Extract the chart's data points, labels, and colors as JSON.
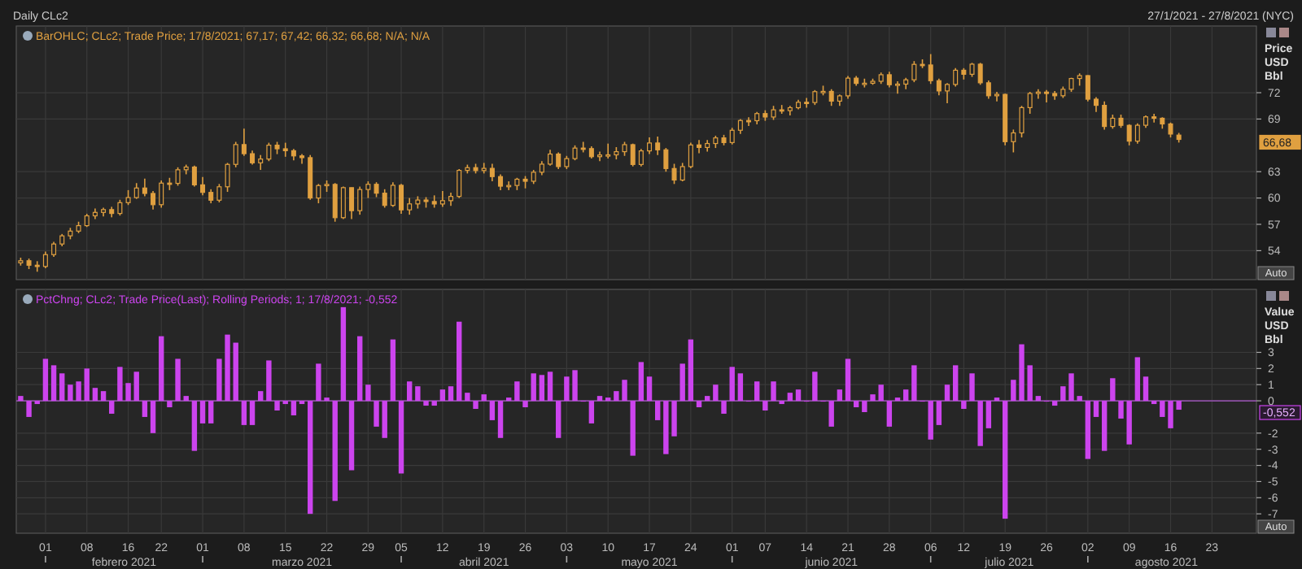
{
  "chart_data": [
    {
      "type": "candlestick",
      "title": "BarOHLC; CLc2; Trade Price; 17/8/2021; 67,17; 67,42; 66,32; 66,68; N/A; N/A",
      "ylabel": "Price USD Bbl",
      "color": "#e0a040",
      "grid": true,
      "tick_labels": "y",
      "ylim": [
        50.7,
        79.6
      ],
      "yticks": [
        54,
        57,
        60,
        63,
        69,
        72
      ],
      "annotations": [
        {
          "text": "66,68",
          "y": 66.68
        },
        "Auto",
        "Daily CLc2",
        "27/1/2021 - 27/8/2021 (NYC)"
      ],
      "categories": [
        null,
        null,
        null,
        "01",
        null,
        null,
        null,
        null,
        "08",
        null,
        null,
        null,
        null,
        "16",
        null,
        null,
        null,
        "22",
        null,
        null,
        null,
        null,
        "01",
        null,
        null,
        null,
        null,
        "08",
        null,
        null,
        null,
        null,
        "15",
        null,
        null,
        null,
        null,
        "22",
        null,
        null,
        null,
        null,
        "29",
        null,
        null,
        null,
        "05",
        null,
        null,
        null,
        null,
        "12",
        null,
        null,
        null,
        null,
        "19",
        null,
        null,
        null,
        null,
        "26",
        null,
        null,
        null,
        null,
        "03",
        null,
        null,
        null,
        null,
        "10",
        null,
        null,
        null,
        null,
        "17",
        null,
        null,
        null,
        null,
        "24",
        null,
        null,
        null,
        null,
        "01",
        null,
        null,
        null,
        "07",
        null,
        null,
        null,
        null,
        "14",
        null,
        null,
        null,
        null,
        "21",
        null,
        null,
        null,
        null,
        "28",
        null,
        null,
        null,
        null,
        "06",
        null,
        null,
        null,
        "12",
        null,
        null,
        null,
        null,
        "19",
        null,
        null,
        null,
        null,
        "26",
        null,
        null,
        null,
        null,
        "02",
        null,
        null,
        null,
        null,
        "09",
        null,
        null,
        null,
        null,
        "16",
        null,
        null,
        null,
        null,
        "23",
        null,
        null,
        null,
        null
      ],
      "ohlc": [
        [
          52.61,
          53.2,
          52.3,
          52.85
        ],
        [
          52.85,
          53.1,
          51.9,
          52.34
        ],
        [
          52.34,
          52.8,
          51.6,
          52.2
        ],
        [
          52.2,
          53.9,
          52.0,
          53.55
        ],
        [
          53.55,
          55.0,
          53.3,
          54.76
        ],
        [
          54.76,
          55.9,
          54.5,
          55.69
        ],
        [
          55.69,
          56.6,
          55.3,
          56.23
        ],
        [
          56.23,
          57.3,
          56.0,
          56.85
        ],
        [
          56.85,
          58.2,
          56.7,
          57.97
        ],
        [
          57.97,
          58.8,
          57.6,
          58.36
        ],
        [
          58.36,
          58.9,
          57.9,
          58.68
        ],
        [
          58.68,
          59.0,
          57.8,
          58.24
        ],
        [
          58.24,
          59.8,
          58.0,
          59.47
        ],
        [
          59.47,
          60.9,
          59.2,
          60.05
        ],
        [
          60.05,
          61.7,
          59.9,
          61.14
        ],
        [
          61.14,
          62.2,
          60.2,
          60.52
        ],
        [
          60.52,
          60.8,
          58.7,
          59.24
        ],
        [
          59.24,
          62.0,
          58.9,
          61.7
        ],
        [
          61.7,
          62.3,
          60.9,
          61.67
        ],
        [
          61.67,
          63.5,
          61.4,
          63.22
        ],
        [
          63.22,
          63.8,
          62.7,
          63.53
        ],
        [
          63.53,
          63.7,
          61.3,
          61.5
        ],
        [
          61.5,
          62.4,
          60.3,
          60.64
        ],
        [
          60.64,
          61.0,
          59.4,
          59.75
        ],
        [
          59.75,
          61.6,
          59.5,
          61.28
        ],
        [
          61.28,
          64.0,
          60.7,
          63.83
        ],
        [
          63.83,
          66.4,
          63.5,
          66.09
        ],
        [
          66.09,
          67.9,
          64.8,
          65.05
        ],
        [
          65.05,
          65.4,
          63.8,
          64.01
        ],
        [
          64.01,
          64.9,
          63.2,
          64.44
        ],
        [
          64.44,
          66.3,
          64.2,
          66.02
        ],
        [
          66.02,
          66.4,
          65.0,
          65.61
        ],
        [
          65.61,
          66.3,
          64.7,
          65.39
        ],
        [
          65.39,
          65.6,
          64.3,
          64.8
        ],
        [
          64.8,
          65.0,
          63.9,
          64.6
        ],
        [
          64.6,
          64.9,
          59.8,
          60.0
        ],
        [
          60.0,
          61.6,
          59.4,
          61.42
        ],
        [
          61.42,
          62.0,
          60.7,
          61.55
        ],
        [
          61.55,
          61.7,
          57.3,
          57.76
        ],
        [
          57.76,
          61.3,
          57.6,
          61.18
        ],
        [
          61.18,
          61.2,
          57.6,
          58.56
        ],
        [
          58.56,
          61.3,
          58.1,
          60.97
        ],
        [
          60.97,
          61.9,
          60.0,
          61.56
        ],
        [
          61.56,
          61.8,
          60.1,
          60.55
        ],
        [
          60.55,
          61.0,
          58.9,
          59.16
        ],
        [
          59.16,
          61.8,
          59.0,
          61.45
        ],
        [
          61.45,
          61.6,
          58.2,
          58.65
        ],
        [
          58.65,
          60.0,
          58.1,
          59.33
        ],
        [
          59.33,
          60.2,
          58.8,
          59.77
        ],
        [
          59.77,
          60.1,
          58.9,
          59.6
        ],
        [
          59.6,
          60.3,
          58.9,
          59.32
        ],
        [
          59.32,
          60.8,
          59.0,
          59.7
        ],
        [
          59.7,
          60.6,
          59.1,
          60.18
        ],
        [
          60.18,
          63.3,
          60.0,
          63.15
        ],
        [
          63.15,
          63.8,
          62.8,
          63.46
        ],
        [
          63.46,
          63.9,
          62.8,
          63.13
        ],
        [
          63.13,
          64.0,
          62.8,
          63.38
        ],
        [
          63.38,
          63.9,
          61.9,
          62.44
        ],
        [
          62.44,
          62.7,
          60.9,
          61.35
        ],
        [
          61.35,
          61.9,
          60.9,
          61.43
        ],
        [
          61.43,
          62.3,
          60.9,
          62.14
        ],
        [
          62.14,
          62.5,
          61.1,
          61.91
        ],
        [
          61.91,
          63.2,
          61.6,
          62.94
        ],
        [
          62.94,
          64.2,
          62.6,
          63.86
        ],
        [
          63.86,
          65.5,
          63.7,
          65.01
        ],
        [
          65.01,
          65.2,
          63.3,
          63.58
        ],
        [
          63.58,
          64.8,
          63.3,
          64.49
        ],
        [
          64.49,
          66.0,
          64.3,
          65.69
        ],
        [
          65.69,
          66.4,
          65.2,
          65.63
        ],
        [
          65.63,
          65.9,
          64.5,
          64.71
        ],
        [
          64.71,
          65.3,
          64.2,
          64.9
        ],
        [
          64.9,
          66.2,
          64.5,
          64.92
        ],
        [
          64.92,
          65.8,
          64.4,
          65.28
        ],
        [
          65.28,
          66.4,
          64.8,
          66.08
        ],
        [
          66.08,
          66.2,
          63.6,
          63.82
        ],
        [
          63.82,
          65.6,
          63.6,
          65.37
        ],
        [
          65.37,
          66.9,
          65.0,
          66.27
        ],
        [
          66.27,
          67.0,
          64.9,
          65.49
        ],
        [
          65.49,
          65.7,
          63.0,
          63.36
        ],
        [
          63.36,
          63.9,
          61.6,
          62.05
        ],
        [
          62.05,
          64.0,
          61.9,
          63.58
        ],
        [
          63.58,
          66.3,
          63.4,
          66.05
        ],
        [
          66.05,
          66.6,
          65.1,
          65.76
        ],
        [
          65.76,
          66.6,
          65.3,
          66.21
        ],
        [
          66.21,
          67.1,
          65.7,
          66.85
        ],
        [
          66.85,
          67.2,
          66.0,
          66.32
        ],
        [
          66.32,
          68.0,
          66.1,
          67.72
        ],
        [
          67.72,
          69.0,
          67.3,
          68.83
        ],
        [
          68.83,
          69.2,
          68.2,
          68.81
        ],
        [
          68.81,
          69.8,
          68.4,
          69.62
        ],
        [
          69.62,
          70.0,
          68.8,
          69.23
        ],
        [
          69.23,
          70.5,
          68.9,
          70.05
        ],
        [
          70.05,
          70.6,
          69.6,
          69.96
        ],
        [
          69.96,
          70.5,
          69.4,
          70.29
        ],
        [
          70.29,
          71.2,
          70.1,
          70.91
        ],
        [
          70.91,
          71.4,
          70.3,
          70.88
        ],
        [
          70.88,
          72.3,
          70.6,
          72.12
        ],
        [
          72.12,
          72.8,
          71.7,
          72.15
        ],
        [
          72.15,
          72.4,
          70.5,
          71.04
        ],
        [
          71.04,
          71.8,
          70.5,
          71.64
        ],
        [
          71.64,
          73.9,
          71.3,
          73.66
        ],
        [
          73.66,
          73.9,
          72.8,
          73.06
        ],
        [
          73.06,
          73.6,
          72.6,
          73.08
        ],
        [
          73.08,
          73.6,
          72.9,
          73.3
        ],
        [
          73.3,
          74.3,
          73.0,
          74.05
        ],
        [
          74.05,
          74.4,
          72.6,
          72.91
        ],
        [
          72.91,
          73.3,
          71.9,
          72.98
        ],
        [
          72.98,
          73.7,
          72.4,
          73.47
        ],
        [
          73.47,
          75.6,
          73.2,
          75.23
        ],
        [
          75.23,
          75.8,
          74.8,
          75.16
        ],
        [
          75.16,
          76.4,
          73.0,
          73.37
        ],
        [
          73.37,
          73.6,
          71.7,
          72.2
        ],
        [
          72.2,
          73.1,
          70.8,
          72.94
        ],
        [
          72.94,
          74.8,
          72.7,
          74.56
        ],
        [
          74.56,
          74.8,
          73.5,
          74.1
        ],
        [
          74.1,
          75.4,
          73.8,
          75.25
        ],
        [
          75.25,
          75.4,
          72.9,
          73.13
        ],
        [
          73.13,
          73.4,
          71.3,
          71.65
        ],
        [
          71.65,
          72.1,
          71.0,
          71.81
        ],
        [
          71.81,
          71.9,
          66.0,
          66.42
        ],
        [
          66.42,
          67.8,
          65.2,
          67.42
        ],
        [
          67.42,
          70.5,
          66.9,
          70.3
        ],
        [
          70.3,
          72.1,
          69.6,
          71.91
        ],
        [
          71.91,
          72.4,
          71.3,
          72.07
        ],
        [
          72.07,
          72.3,
          70.9,
          71.91
        ],
        [
          71.91,
          72.2,
          71.2,
          71.65
        ],
        [
          71.65,
          72.7,
          71.4,
          72.39
        ],
        [
          72.39,
          73.7,
          72.1,
          73.62
        ],
        [
          73.62,
          74.2,
          72.8,
          73.95
        ],
        [
          73.95,
          74.0,
          71.0,
          71.26
        ],
        [
          71.26,
          71.5,
          69.8,
          70.56
        ],
        [
          70.56,
          71.0,
          67.8,
          68.15
        ],
        [
          68.15,
          69.5,
          67.9,
          69.09
        ],
        [
          69.09,
          69.5,
          68.0,
          68.28
        ],
        [
          68.28,
          68.4,
          66.0,
          66.48
        ],
        [
          66.48,
          68.5,
          66.2,
          68.29
        ],
        [
          68.29,
          69.4,
          68.0,
          69.25
        ],
        [
          69.25,
          69.6,
          68.6,
          69.09
        ],
        [
          69.09,
          69.2,
          67.9,
          68.44
        ],
        [
          68.44,
          68.6,
          66.9,
          67.29
        ],
        [
          67.17,
          67.42,
          66.32,
          66.68
        ],
        null,
        null,
        null,
        null,
        null,
        null,
        null,
        null
      ]
    },
    {
      "type": "bar",
      "title": "PctChng; CLc2; Trade Price(Last); Rolling Periods; 1; 17/8/2021; -0,552",
      "ylabel": "Value USD Bbl",
      "color": "#cc44ee",
      "grid": true,
      "ylim": [
        -8.2,
        6.9
      ],
      "ref_lines": [
        {
          "axis": "y",
          "value": 0,
          "color": "#b05ad0"
        }
      ],
      "yticks": [
        3,
        2,
        1,
        0,
        -2,
        -3,
        -4,
        -5,
        -6,
        -7
      ],
      "annotations": [
        {
          "text": "-0,552",
          "y": -0.552
        },
        "Auto",
        "febrero 2021",
        "marzo 2021",
        "abril 2021",
        "mayo 2021",
        "junio 2021",
        "julio 2021",
        "agosto 2021"
      ],
      "categories": [
        null,
        null,
        null,
        "01",
        null,
        null,
        null,
        null,
        "08",
        null,
        null,
        null,
        null,
        "16",
        null,
        null,
        null,
        "22",
        null,
        null,
        null,
        null,
        "01",
        null,
        null,
        null,
        null,
        "08",
        null,
        null,
        null,
        null,
        "15",
        null,
        null,
        null,
        null,
        "22",
        null,
        null,
        null,
        null,
        "29",
        null,
        null,
        null,
        "05",
        null,
        null,
        null,
        null,
        "12",
        null,
        null,
        null,
        null,
        "19",
        null,
        null,
        null,
        null,
        "26",
        null,
        null,
        null,
        null,
        "03",
        null,
        null,
        null,
        null,
        "10",
        null,
        null,
        null,
        null,
        "17",
        null,
        null,
        null,
        null,
        "24",
        null,
        null,
        null,
        null,
        "01",
        null,
        null,
        null,
        "07",
        null,
        null,
        null,
        null,
        "14",
        null,
        null,
        null,
        null,
        "21",
        null,
        null,
        null,
        null,
        "28",
        null,
        null,
        null,
        null,
        "06",
        null,
        null,
        null,
        "12",
        null,
        null,
        null,
        null,
        "19",
        null,
        null,
        null,
        null,
        "26",
        null,
        null,
        null,
        null,
        "02",
        null,
        null,
        null,
        null,
        "09",
        null,
        null,
        null,
        null,
        "16",
        null,
        null,
        null,
        null,
        "23",
        null,
        null,
        null,
        null
      ],
      "values": [
        0.3,
        -1.0,
        -0.2,
        2.6,
        2.2,
        1.7,
        1.0,
        1.2,
        2.0,
        0.8,
        0.6,
        -0.8,
        2.1,
        1.1,
        1.8,
        -1.0,
        -2.0,
        4.0,
        -0.4,
        2.6,
        0.3,
        -3.1,
        -1.4,
        -1.4,
        2.6,
        4.1,
        3.6,
        -1.5,
        -1.5,
        0.6,
        2.5,
        -0.6,
        -0.2,
        -0.9,
        -0.2,
        -7.0,
        2.3,
        0.2,
        -6.2,
        5.8,
        -4.3,
        4.0,
        1.0,
        -1.6,
        -2.3,
        3.8,
        -4.5,
        1.2,
        0.9,
        -0.3,
        -0.3,
        0.7,
        0.9,
        4.9,
        0.5,
        -0.5,
        0.4,
        -1.2,
        -2.3,
        0.2,
        1.2,
        -0.4,
        1.7,
        1.6,
        1.8,
        -2.3,
        1.5,
        1.9,
        0.0,
        -1.4,
        0.3,
        0.2,
        0.6,
        1.3,
        -3.4,
        2.4,
        1.5,
        -1.2,
        -3.3,
        -2.2,
        2.3,
        3.8,
        -0.4,
        0.3,
        1.0,
        -0.8,
        2.1,
        1.7,
        0.0,
        1.2,
        -0.6,
        1.2,
        -0.2,
        0.5,
        0.7,
        0.0,
        1.8,
        0.0,
        -1.6,
        0.7,
        2.6,
        -0.4,
        -0.7,
        0.4,
        1.0,
        -1.6,
        0.2,
        0.7,
        2.2,
        0.0,
        -2.4,
        -1.5,
        1.0,
        2.2,
        -0.5,
        1.7,
        -2.8,
        -1.7,
        0.2,
        -7.3,
        1.3,
        3.5,
        2.2,
        0.3,
        0.0,
        -0.3,
        0.9,
        1.7,
        0.3,
        -3.6,
        -1.0,
        -3.1,
        1.4,
        -1.1,
        -2.7,
        2.7,
        1.5,
        -0.2,
        -1.0,
        -1.7,
        -0.552,
        null,
        null,
        null,
        null,
        null,
        null,
        null,
        null
      ]
    }
  ]
}
